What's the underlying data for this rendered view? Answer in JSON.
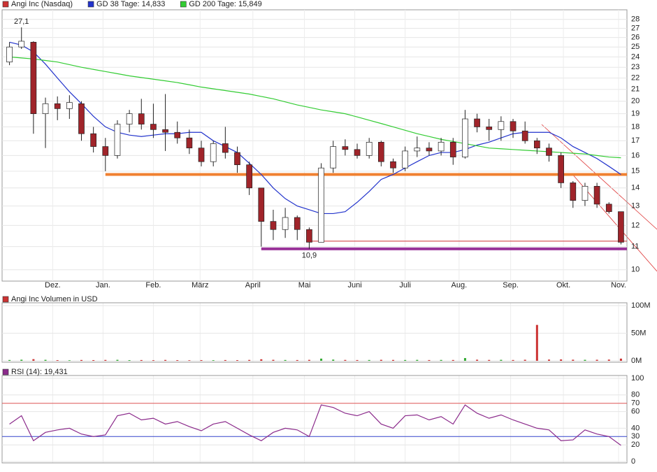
{
  "chart_data": [
    {
      "type": "candlestick",
      "name": "Angi Inc (Nasdaq)",
      "color": "#cc3333",
      "up_color": "#ffffff",
      "down_color": "#a0242a",
      "open": [
        23.5,
        25.0,
        25.5,
        19.0,
        19.8,
        19.4,
        19.8,
        17.5,
        16.6,
        16.0,
        18.2,
        19.0,
        18.2,
        17.8,
        17.6,
        17.2,
        16.5,
        15.6,
        16.8,
        16.2,
        15.4,
        14.0,
        12.2,
        11.8,
        12.4,
        11.8,
        11.2,
        15.2,
        16.6,
        16.4,
        16.0,
        16.9,
        15.6,
        15.2,
        16.3,
        16.5,
        16.3,
        16.9,
        15.9,
        18.6,
        18.0,
        17.8,
        18.4,
        17.7,
        17.0,
        16.5,
        16.0,
        14.3,
        13.3,
        14.1,
        13.1,
        12.7
      ],
      "high": [
        25.5,
        27.1,
        25.6,
        20.3,
        20.4,
        20.5,
        20.0,
        18.0,
        17.2,
        18.5,
        19.3,
        20.2,
        19.8,
        20.6,
        18.4,
        17.8,
        17.0,
        17.0,
        18.0,
        16.6,
        15.6,
        14.0,
        12.8,
        12.9,
        12.5,
        11.9,
        15.5,
        17.0,
        17.1,
        16.8,
        17.2,
        17.0,
        15.8,
        16.6,
        17.3,
        16.9,
        17.2,
        17.2,
        19.3,
        19.0,
        18.6,
        18.8,
        18.6,
        18.4,
        17.2,
        16.8,
        16.2,
        14.4,
        14.3,
        14.3,
        13.2,
        12.7
      ],
      "low": [
        23.2,
        24.8,
        17.5,
        16.5,
        18.5,
        18.6,
        17.0,
        16.2,
        15.0,
        15.8,
        17.6,
        17.8,
        17.2,
        16.3,
        16.8,
        16.1,
        15.3,
        15.3,
        15.8,
        14.9,
        13.6,
        11.0,
        11.3,
        11.4,
        11.3,
        10.9,
        11.2,
        14.9,
        16.0,
        15.8,
        15.8,
        15.3,
        14.9,
        15.0,
        15.9,
        16.0,
        16.0,
        15.4,
        15.8,
        17.6,
        17.0,
        17.0,
        17.2,
        16.8,
        16.1,
        15.6,
        14.0,
        12.9,
        13.0,
        12.9,
        12.6,
        11.1
      ],
      "close": [
        25.0,
        25.6,
        19.0,
        19.8,
        19.4,
        19.9,
        17.5,
        16.6,
        16.0,
        18.2,
        19.0,
        18.2,
        17.8,
        17.6,
        17.2,
        16.5,
        15.6,
        16.8,
        16.2,
        15.4,
        14.0,
        12.2,
        11.8,
        12.4,
        11.8,
        11.2,
        15.2,
        16.6,
        16.4,
        16.0,
        16.9,
        15.6,
        15.2,
        16.3,
        16.5,
        16.3,
        16.9,
        15.9,
        18.6,
        18.0,
        17.8,
        18.4,
        17.7,
        17.0,
        16.5,
        16.0,
        14.3,
        13.3,
        14.1,
        13.1,
        12.7,
        11.2
      ],
      "overlays": [
        {
          "name": "GD 38 Tage: 14,833",
          "color": "#2233cc",
          "values": [
            25.5,
            25.2,
            24.5,
            23.3,
            22.0,
            20.8,
            19.8,
            18.8,
            18.0,
            17.6,
            17.4,
            17.3,
            17.4,
            17.5,
            17.5,
            17.6,
            17.6,
            17.0,
            16.6,
            16.2,
            15.5,
            14.8,
            14.0,
            13.4,
            13.0,
            12.8,
            12.6,
            12.6,
            12.7,
            13.2,
            13.8,
            14.5,
            14.8,
            15.2,
            15.6,
            16.0,
            16.2,
            16.2,
            16.4,
            16.7,
            16.9,
            17.2,
            17.5,
            17.6,
            17.6,
            17.6,
            17.2,
            16.6,
            16.2,
            15.8,
            15.3,
            14.8
          ]
        },
        {
          "name": "GD 200 Tage: 15,849",
          "color": "#33cc33",
          "values": [
            24.0,
            23.9,
            23.8,
            23.65,
            23.5,
            23.25,
            23.0,
            22.8,
            22.6,
            22.4,
            22.2,
            22.05,
            21.9,
            21.75,
            21.6,
            21.4,
            21.2,
            21.05,
            20.9,
            20.75,
            20.6,
            20.4,
            20.2,
            19.95,
            19.7,
            19.5,
            19.3,
            19.15,
            19.0,
            18.75,
            18.5,
            18.25,
            18.0,
            17.75,
            17.5,
            17.3,
            17.1,
            16.95,
            16.8,
            16.65,
            16.5,
            16.45,
            16.4,
            16.35,
            16.3,
            16.25,
            16.2,
            16.15,
            16.1,
            16.0,
            15.9,
            15.85
          ]
        }
      ],
      "levels": [
        {
          "value": 14.8,
          "color": "#f08030",
          "start": 8
        },
        {
          "value": 10.9,
          "color": "#993399",
          "start": 21
        },
        {
          "value": 11.25,
          "color": "#cc3333",
          "start": 25
        }
      ],
      "annotations": [
        {
          "index": 1,
          "value": 27.1,
          "label": "27,1"
        },
        {
          "index": 25,
          "value": 10.9,
          "label": "10,9"
        }
      ],
      "xlim": [
        -0.5,
        51.5
      ],
      "xticks": [
        {
          "value": 3.6,
          "label": "Dez."
        },
        {
          "value": 7.8,
          "label": "Jan."
        },
        {
          "value": 12.0,
          "label": "Feb."
        },
        {
          "value": 15.9,
          "label": "März"
        },
        {
          "value": 20.3,
          "label": "April"
        },
        {
          "value": 24.6,
          "label": "Mai"
        },
        {
          "value": 28.8,
          "label": "Juni"
        },
        {
          "value": 33.0,
          "label": "Juli"
        },
        {
          "value": 37.5,
          "label": "Aug."
        },
        {
          "value": 41.8,
          "label": "Sep."
        },
        {
          "value": 46.2,
          "label": "Okt."
        },
        {
          "value": 50.8,
          "label": "Nov."
        }
      ],
      "ylim": [
        9.6,
        28.8
      ],
      "yticks": [
        10,
        11,
        12,
        13,
        14,
        15,
        16,
        17,
        18,
        19,
        20,
        21,
        22,
        23,
        24,
        25,
        26,
        27,
        28
      ],
      "log_scale": true,
      "grid": true
    },
    {
      "type": "bar",
      "title": "Angi Inc Volumen in USD",
      "color": "#cc3333",
      "values": [
        1.5,
        2.0,
        3.0,
        1.8,
        1.2,
        1.0,
        1.5,
        1.3,
        1.6,
        1.8,
        1.2,
        1.4,
        1.1,
        1.6,
        1.2,
        1.0,
        1.3,
        1.1,
        1.4,
        1.2,
        1.6,
        2.8,
        1.8,
        1.5,
        1.4,
        1.7,
        4.0,
        2.2,
        1.6,
        1.4,
        1.5,
        1.8,
        1.6,
        1.5,
        1.7,
        1.4,
        1.6,
        1.5,
        5.0,
        2.0,
        1.6,
        1.8,
        1.5,
        1.9,
        65.0,
        2.2,
        2.5,
        2.0,
        1.8,
        1.9,
        2.2,
        4.0
      ],
      "ylim": [
        0,
        100
      ],
      "yticks": [
        {
          "value": 0,
          "label": "0M"
        },
        {
          "value": 50,
          "label": "50M"
        },
        {
          "value": 100,
          "label": "100M"
        }
      ]
    },
    {
      "type": "line",
      "series": [
        {
          "name": "RSI (14): 19,431",
          "color": "#8b2a8b",
          "values": [
            45,
            55,
            25,
            35,
            38,
            40,
            33,
            30,
            32,
            55,
            58,
            50,
            52,
            45,
            48,
            42,
            37,
            45,
            48,
            40,
            32,
            25,
            35,
            40,
            38,
            30,
            68,
            65,
            58,
            55,
            60,
            45,
            40,
            55,
            56,
            50,
            54,
            45,
            68,
            58,
            52,
            56,
            50,
            45,
            40,
            38,
            25,
            26,
            38,
            33,
            30,
            19.431
          ]
        }
      ],
      "levels": [
        {
          "value": 70,
          "color": "#dd5555"
        },
        {
          "value": 30,
          "color": "#3344cc"
        }
      ],
      "ylim": [
        0,
        100
      ],
      "yticks": [
        0,
        20,
        40,
        60,
        80,
        100
      ]
    }
  ]
}
